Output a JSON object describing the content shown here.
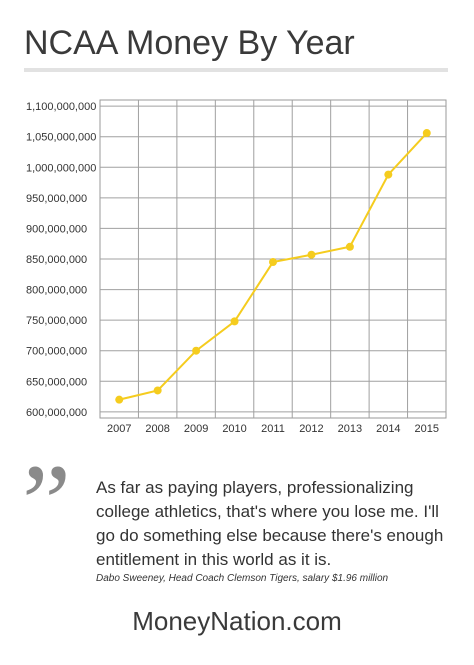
{
  "title": "NCAA Money By Year",
  "chart_data": {
    "type": "line",
    "x": [
      "2007",
      "2008",
      "2009",
      "2010",
      "2011",
      "2012",
      "2013",
      "2014",
      "2015"
    ],
    "series": [
      {
        "values": [
          620000000,
          635000000,
          700000000,
          748000000,
          845000000,
          857000000,
          870000000,
          988000000,
          1056000000
        ]
      }
    ],
    "ylim": [
      590000000,
      1110000000
    ],
    "yticks": [
      {
        "value": 600000000,
        "label": "600,000,000"
      },
      {
        "value": 650000000,
        "label": "650,000,000"
      },
      {
        "value": 700000000,
        "label": "700,000,000"
      },
      {
        "value": 750000000,
        "label": "750,000,000"
      },
      {
        "value": 800000000,
        "label": "800,000,000"
      },
      {
        "value": 850000000,
        "label": "850,000,000"
      },
      {
        "value": 900000000,
        "label": "900,000,000"
      },
      {
        "value": 950000000,
        "label": "950,000,000"
      },
      {
        "value": 1000000000,
        "label": "1,000,000,000"
      },
      {
        "value": 1050000000,
        "label": "1,050,000,000"
      },
      {
        "value": 1100000000,
        "label": "1,100,000,000"
      }
    ],
    "grid": true,
    "line_color": "#f5cc1e"
  },
  "quote": {
    "mark": "”",
    "text": "As far as paying players, professionalizing college athletics, that's where you lose me. I'll go do something else because there's enough entitlement in this world as it is.",
    "attribution": "Dabo Sweeney, Head Coach Clemson Tigers, salary $1.96 million"
  },
  "footer": "MoneyNation.com"
}
